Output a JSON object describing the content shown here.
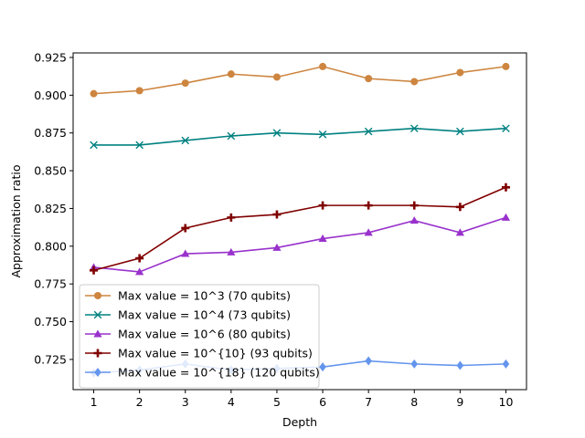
{
  "chart_data": {
    "type": "line",
    "title": "",
    "xlabel": "Depth",
    "ylabel": "Approximation ratio",
    "x": [
      1,
      2,
      3,
      4,
      5,
      6,
      7,
      8,
      9,
      10
    ],
    "xlim": [
      0.55,
      10.45
    ],
    "ylim": [
      0.705,
      0.928
    ],
    "yticks": [
      0.725,
      0.75,
      0.775,
      0.8,
      0.825,
      0.85,
      0.875,
      0.9,
      0.925
    ],
    "ytick_labels": [
      "0.725",
      "0.750",
      "0.775",
      "0.800",
      "0.825",
      "0.850",
      "0.875",
      "0.900",
      "0.925"
    ],
    "xticks": [
      1,
      2,
      3,
      4,
      5,
      6,
      7,
      8,
      9,
      10
    ],
    "xtick_labels": [
      "1",
      "2",
      "3",
      "4",
      "5",
      "6",
      "7",
      "8",
      "9",
      "10"
    ],
    "grid": false,
    "legend_position": "lower-left",
    "series": [
      {
        "name": "Max value = 10^3 (70 qubits)",
        "color": "#CD853F",
        "marker": "circle",
        "values": [
          0.901,
          0.903,
          0.908,
          0.914,
          0.912,
          0.919,
          0.911,
          0.909,
          0.915,
          0.919
        ]
      },
      {
        "name": "Max value = 10^4 (73 qubits)",
        "color": "#008080",
        "marker": "x",
        "values": [
          0.867,
          0.867,
          0.87,
          0.873,
          0.875,
          0.874,
          0.876,
          0.878,
          0.876,
          0.878
        ]
      },
      {
        "name": "Max value = 10^6 (80 qubits)",
        "color": "#9932CC",
        "marker": "triangle",
        "values": [
          0.786,
          0.783,
          0.795,
          0.796,
          0.799,
          0.805,
          0.809,
          0.817,
          0.809,
          0.819
        ]
      },
      {
        "name": "Max value = 10^{10} (93 qubits)",
        "color": "#800000",
        "marker": "plus",
        "values": [
          0.784,
          0.792,
          0.812,
          0.819,
          0.821,
          0.827,
          0.827,
          0.827,
          0.826,
          0.839
        ]
      },
      {
        "name": "Max value = 10^{18} (120 qubits)",
        "color": "#6495ED",
        "marker": "diamond",
        "values": [
          0.716,
          0.718,
          0.722,
          0.718,
          0.719,
          0.72,
          0.724,
          0.722,
          0.721,
          0.722
        ]
      }
    ]
  }
}
